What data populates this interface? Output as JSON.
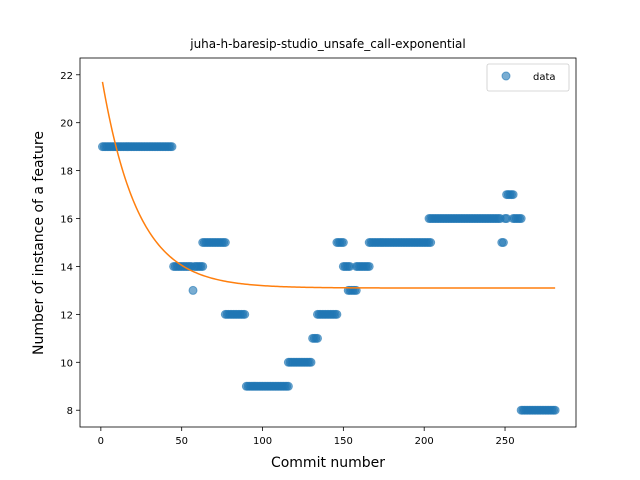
{
  "chart_data": {
    "type": "scatter",
    "title": "juha-h-baresip-studio_unsafe_call-exponential",
    "xlabel": "Commit number",
    "ylabel": "Number of instance of a feature",
    "xlim": [
      -12.9,
      293.9
    ],
    "ylim": [
      7.3,
      22.7
    ],
    "xticks": [
      0,
      50,
      100,
      150,
      200,
      250
    ],
    "yticks": [
      8,
      10,
      12,
      14,
      16,
      18,
      20,
      22
    ],
    "grid": false,
    "legend": {
      "position": "top-right",
      "entries": [
        "data"
      ]
    },
    "colors": {
      "data": "#1f77b4",
      "fit": "#ff7f0e"
    },
    "series": [
      {
        "name": "data",
        "kind": "scatter",
        "segments": [
          {
            "x_start": 1,
            "x_end": 44,
            "y": 19
          },
          {
            "x_start": 45,
            "x_end": 56,
            "y": 14
          },
          {
            "x_start": 57,
            "x_end": 57,
            "y": 13
          },
          {
            "x_start": 58,
            "x_end": 63,
            "y": 14
          },
          {
            "x_start": 63,
            "x_end": 77,
            "y": 15
          },
          {
            "x_start": 77,
            "x_end": 89,
            "y": 12
          },
          {
            "x_start": 90,
            "x_end": 116,
            "y": 9
          },
          {
            "x_start": 116,
            "x_end": 130,
            "y": 10
          },
          {
            "x_start": 131,
            "x_end": 134,
            "y": 11
          },
          {
            "x_start": 134,
            "x_end": 146,
            "y": 12
          },
          {
            "x_start": 146,
            "x_end": 150,
            "y": 15
          },
          {
            "x_start": 150,
            "x_end": 154,
            "y": 14
          },
          {
            "x_start": 153,
            "x_end": 158,
            "y": 13
          },
          {
            "x_start": 158,
            "x_end": 166,
            "y": 14
          },
          {
            "x_start": 166,
            "x_end": 204,
            "y": 15
          },
          {
            "x_start": 203,
            "x_end": 247,
            "y": 16
          },
          {
            "x_start": 248,
            "x_end": 249,
            "y": 15
          },
          {
            "x_start": 250,
            "x_end": 251,
            "y": 16
          },
          {
            "x_start": 251,
            "x_end": 255,
            "y": 17
          },
          {
            "x_start": 255,
            "x_end": 260,
            "y": 16
          },
          {
            "x_start": 260,
            "x_end": 281,
            "y": 8
          }
        ]
      },
      {
        "kind": "line",
        "model": "exponential",
        "function": "y = a * exp(-b * x) + c",
        "params": {
          "a": 9.0,
          "b": 0.045,
          "c": 13.1
        },
        "x_range": [
          1,
          281
        ]
      }
    ]
  }
}
